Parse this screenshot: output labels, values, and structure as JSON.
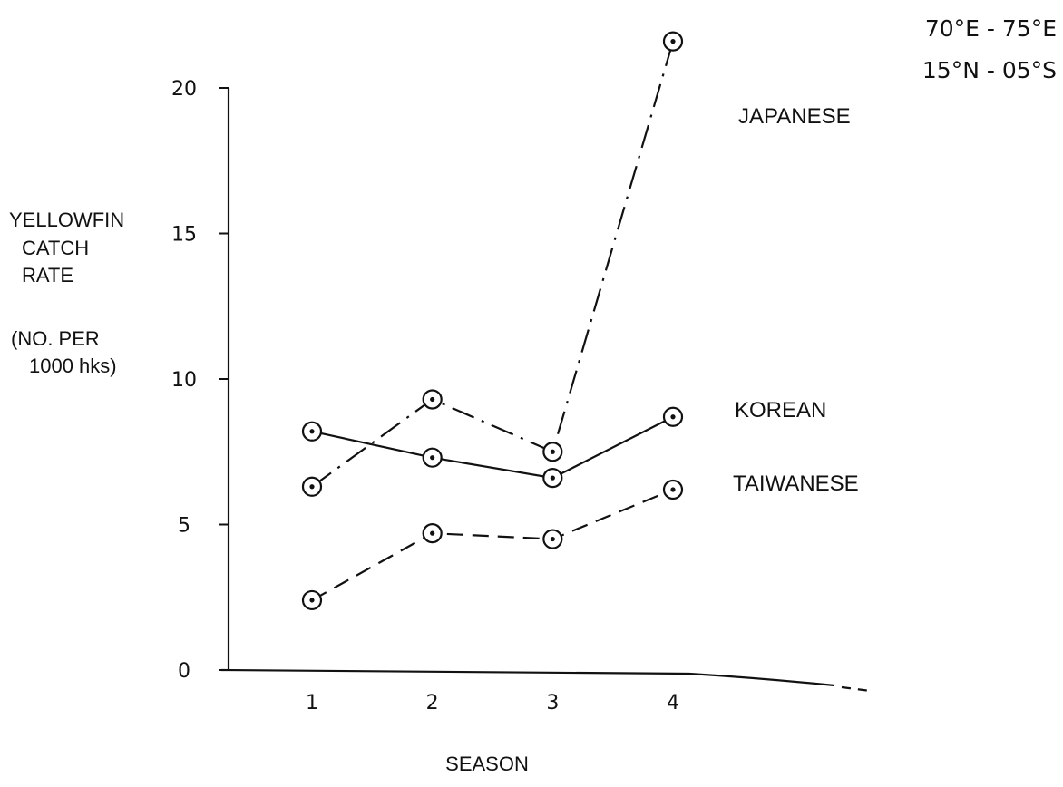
{
  "chart_data": {
    "type": "line",
    "x": [
      1,
      2,
      3,
      4
    ],
    "xlabel": "SEASON",
    "ylabel": [
      "YELLOWFIN",
      "CATCH",
      "RATE",
      "(NO. PER",
      "1000 hks)"
    ],
    "xlim": [
      0,
      5.6
    ],
    "ylim": [
      0,
      20
    ],
    "y_ticks": [
      0,
      5,
      10,
      15,
      20
    ],
    "x_ticks": [
      1,
      2,
      3,
      4
    ],
    "grid": false,
    "legend": "labels at right of series",
    "region": [
      "70°E - 75°E",
      "15°N - 05°S"
    ],
    "series": [
      {
        "name": "JAPANESE",
        "style": "dash-dot",
        "values": [
          6.3,
          9.3,
          7.5,
          21.6
        ]
      },
      {
        "name": "KOREAN",
        "style": "solid",
        "values": [
          8.2,
          7.3,
          6.6,
          8.7
        ]
      },
      {
        "name": "TAIWANESE",
        "style": "dashed",
        "values": [
          2.4,
          4.7,
          4.5,
          6.2
        ]
      }
    ],
    "colors": {
      "ink": "#111111",
      "background": "#ffffff"
    }
  }
}
